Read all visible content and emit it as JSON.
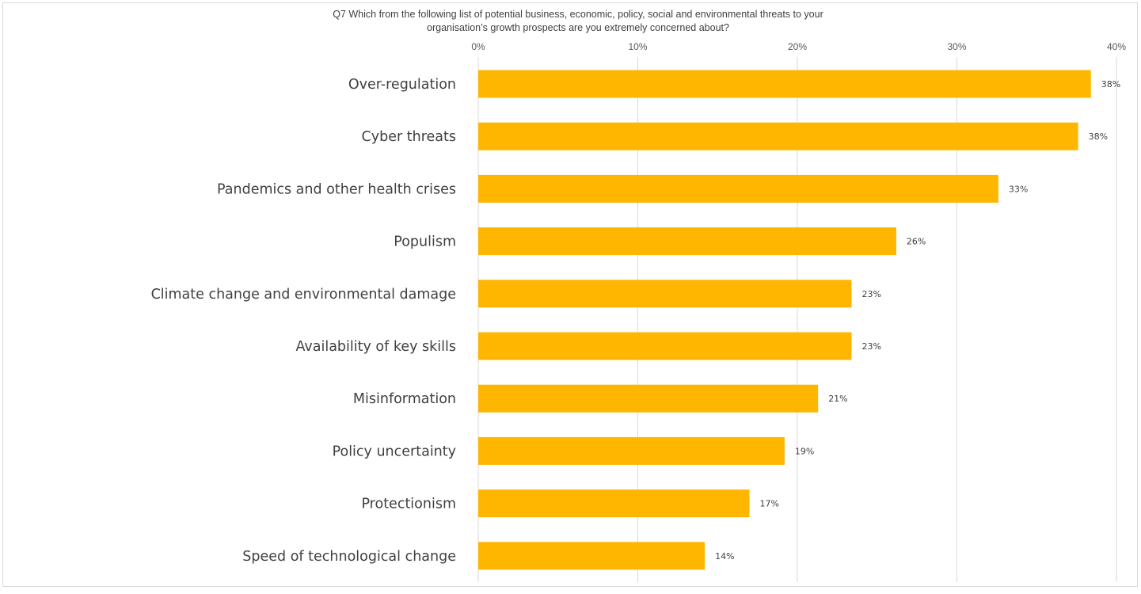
{
  "chart_data": {
    "type": "bar",
    "orientation": "horizontal",
    "title_lines": [
      "Q7 Which from the following list of potential business, economic, policy, social and environmental threats to your",
      "organisation’s growth prospects are you extremely concerned about?"
    ],
    "categories": [
      "Over-regulation",
      "Cyber threats",
      "Pandemics and other health crises",
      "Populism",
      "Climate change and environmental damage",
      "Availability of key skills",
      "Misinformation",
      "Policy uncertainty",
      "Protectionism",
      "Speed of technological change"
    ],
    "values": [
      38.4,
      37.6,
      32.6,
      26.2,
      23.4,
      23.4,
      21.3,
      19.2,
      17.0,
      14.2
    ],
    "value_labels": [
      "38%",
      "38%",
      "33%",
      "26%",
      "23%",
      "23%",
      "21%",
      "19%",
      "17%",
      "14%"
    ],
    "xlim": [
      0,
      40
    ],
    "x_ticks": [
      0,
      10,
      20,
      30,
      40
    ],
    "x_tick_labels": [
      "0%",
      "10%",
      "20%",
      "30%",
      "40%"
    ],
    "x_axis_position": "top",
    "grid": true,
    "bar_color": "#FFB600"
  }
}
